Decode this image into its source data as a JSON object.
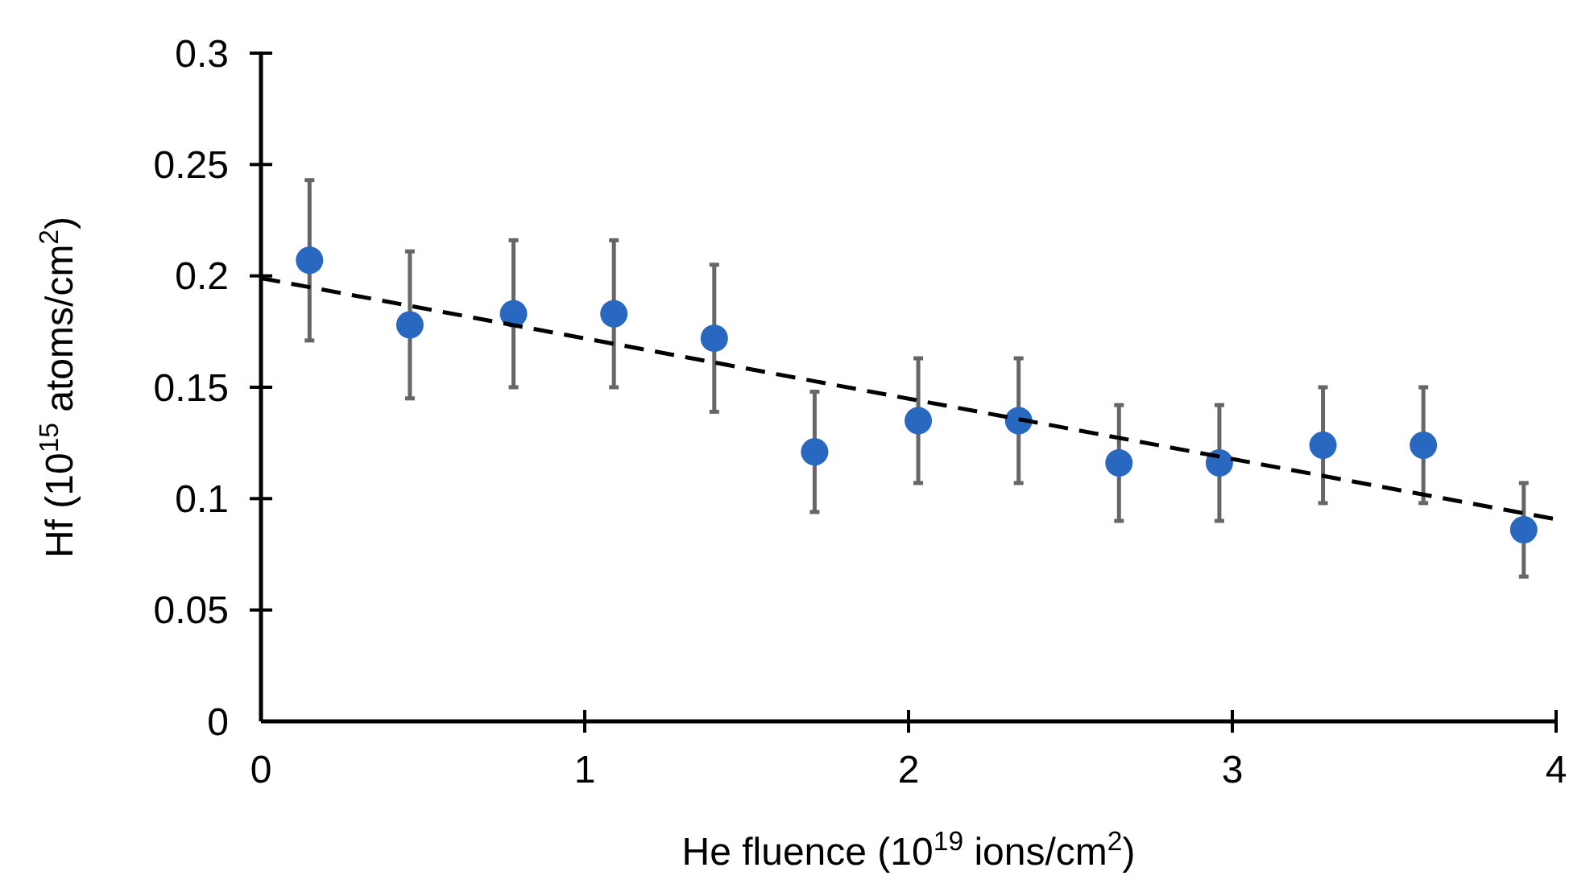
{
  "chart_data": {
    "type": "scatter",
    "xlabel": "He fluence (10$^{19}$ ions/cm$^{2}$)",
    "ylabel": "Hf (10$^{15}$ atoms/cm$^{2}$)",
    "xlim": [
      0,
      4
    ],
    "xticks": [
      0,
      1,
      2,
      3,
      4
    ],
    "ylim": [
      0,
      0.3
    ],
    "yticks": [
      0,
      0.05,
      0.1,
      0.15,
      0.2,
      0.25,
      0.3
    ],
    "grid": false,
    "series": [
      {
        "color": "#2968c0",
        "marker": "circle",
        "x": [
          0.15,
          0.46,
          0.78,
          1.09,
          1.4,
          1.71,
          2.03,
          2.34,
          2.65,
          2.96,
          3.28,
          3.59,
          3.9
        ],
        "values": [
          0.207,
          0.178,
          0.183,
          0.183,
          0.172,
          0.121,
          0.135,
          0.135,
          0.116,
          0.116,
          0.124,
          0.124,
          0.086
        ],
        "errors": [
          0.036,
          0.033,
          0.033,
          0.033,
          0.033,
          0.027,
          0.028,
          0.028,
          0.026,
          0.026,
          0.026,
          0.026,
          0.021
        ]
      },
      {
        "type": "line",
        "color": "#000000",
        "line_style": "dashed",
        "marker": "none",
        "x": [
          0,
          3.99
        ],
        "values": [
          0.199,
          0.091
        ]
      }
    ]
  }
}
